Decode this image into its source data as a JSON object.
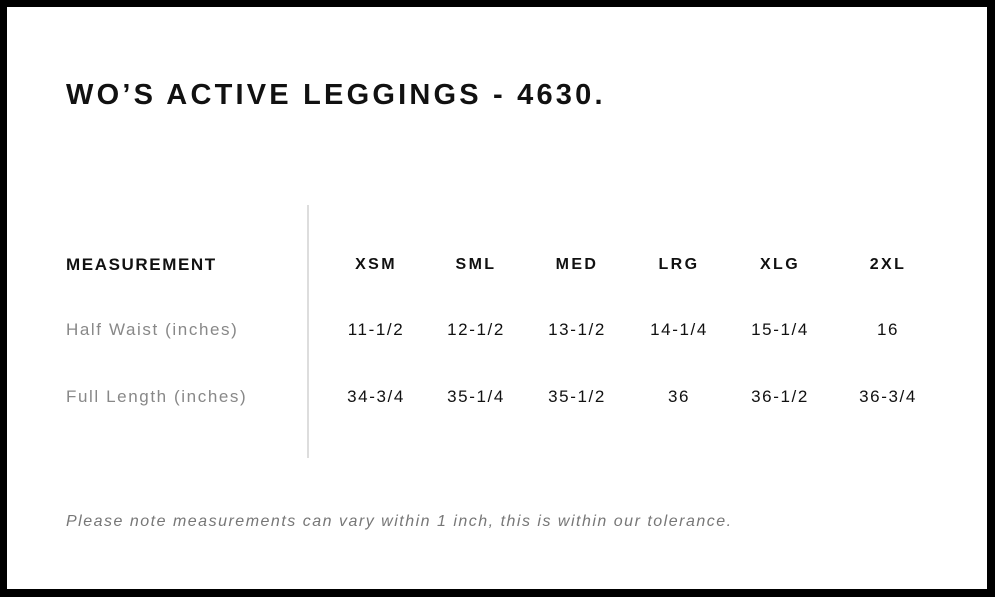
{
  "title": "WO’S ACTIVE LEGGINGS - 4630.",
  "table": {
    "header_label": "MEASUREMENT",
    "sizes": [
      "XSM",
      "SML",
      "MED",
      "LRG",
      "XLG",
      "2XL"
    ],
    "rows": [
      {
        "label": "Half Waist (inches)",
        "values": [
          "11-1/2",
          "12-1/2",
          "13-1/2",
          "14-1/4",
          "15-1/4",
          "16"
        ]
      },
      {
        "label": "Full Length (inches)",
        "values": [
          "34-3/4",
          "35-1/4",
          "35-1/2",
          "36",
          "36-1/2",
          "36-3/4"
        ]
      }
    ]
  },
  "note": "Please note measurements can vary within 1 inch, this is within our tolerance."
}
